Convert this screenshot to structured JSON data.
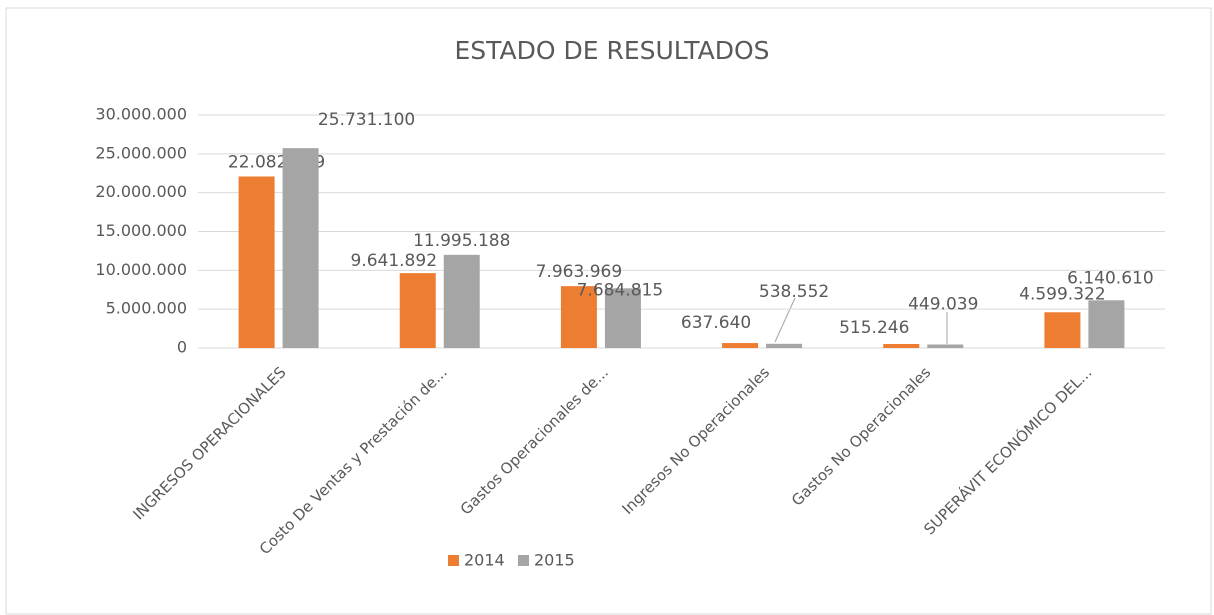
{
  "chart_data": {
    "type": "bar",
    "title": "ESTADO DE RESULTADOS",
    "categories": [
      "INGRESOS OPERACIONALES",
      "Costo De Ventas y Prestación de...",
      "Gastos Operacionales de...",
      "Ingresos No Operacionales",
      "Gastos No Operacionales",
      "SUPERÁVIT ECONÓMICO DEL..."
    ],
    "series": [
      {
        "name": "2014",
        "color": "#ed7d31",
        "values": [
          22082789,
          9641892,
          7963969,
          637640,
          515246,
          4599322
        ],
        "value_labels": [
          "22.082.789",
          "9.641.892",
          "7.963.969",
          "637.640",
          "515.246",
          "4.599.322"
        ]
      },
      {
        "name": "2015",
        "color": "#a5a5a5",
        "values": [
          25731100,
          11995188,
          7684815,
          538552,
          449039,
          6140610
        ],
        "value_labels": [
          "25.731.100",
          "11.995.188",
          "7.684.815",
          "538.552",
          "449.039",
          "6.140.610"
        ]
      }
    ],
    "ylim": [
      0,
      30000000
    ],
    "yticks": [
      0,
      {
        "value": 5000000,
        "label": "5.000.000"
      },
      {
        "value": 10000000,
        "label": "10.000.000"
      },
      {
        "value": 15000000,
        "label": "15.000.000"
      },
      {
        "value": 20000000,
        "label": "20.000.000"
      },
      {
        "value": 25000000,
        "label": "25.000.000"
      },
      {
        "value": 30000000,
        "label": "30.000.000"
      }
    ],
    "grid": true,
    "legend": "bottom"
  }
}
